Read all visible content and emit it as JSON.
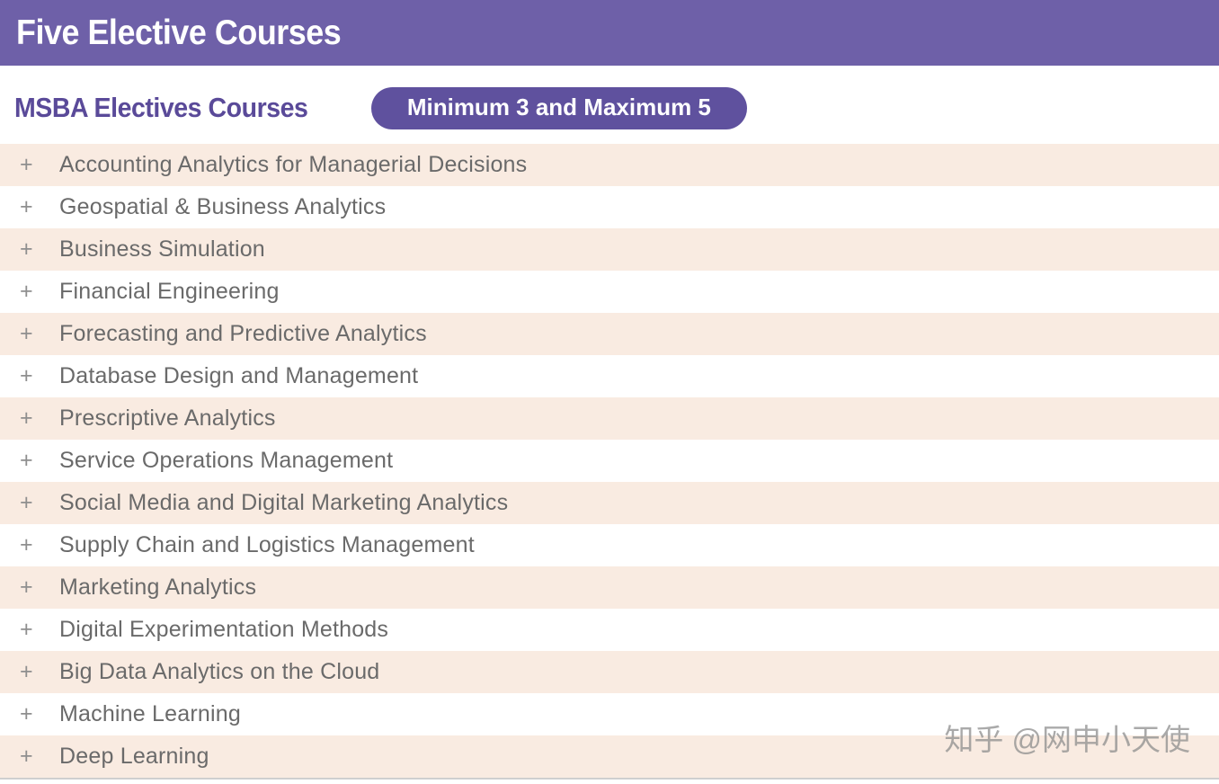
{
  "banner": {
    "title": "Five Elective Courses"
  },
  "section": {
    "title": "MSBA Electives Courses",
    "badge": "Minimum 3 and Maximum 5"
  },
  "expand_icon": "+",
  "courses": [
    "Accounting Analytics for Managerial Decisions",
    "Geospatial & Business Analytics",
    "Business Simulation",
    "Financial Engineering",
    "Forecasting and Predictive Analytics",
    "Database Design and Management",
    "Prescriptive Analytics",
    "Service Operations Management",
    "Social Media and Digital Marketing Analytics",
    "Supply Chain and Logistics Management",
    "Marketing Analytics",
    "Digital Experimentation Methods",
    "Big Data Analytics on the Cloud",
    "Machine Learning",
    "Deep Learning"
  ],
  "watermark": "知乎 @网申小天使",
  "colors": {
    "banner_bg": "#6e60a8",
    "badge_bg": "#5f519e",
    "heading_text": "#5a4a99",
    "row_alt_bg": "#f9ebe1",
    "course_text": "#6a6a6a"
  }
}
